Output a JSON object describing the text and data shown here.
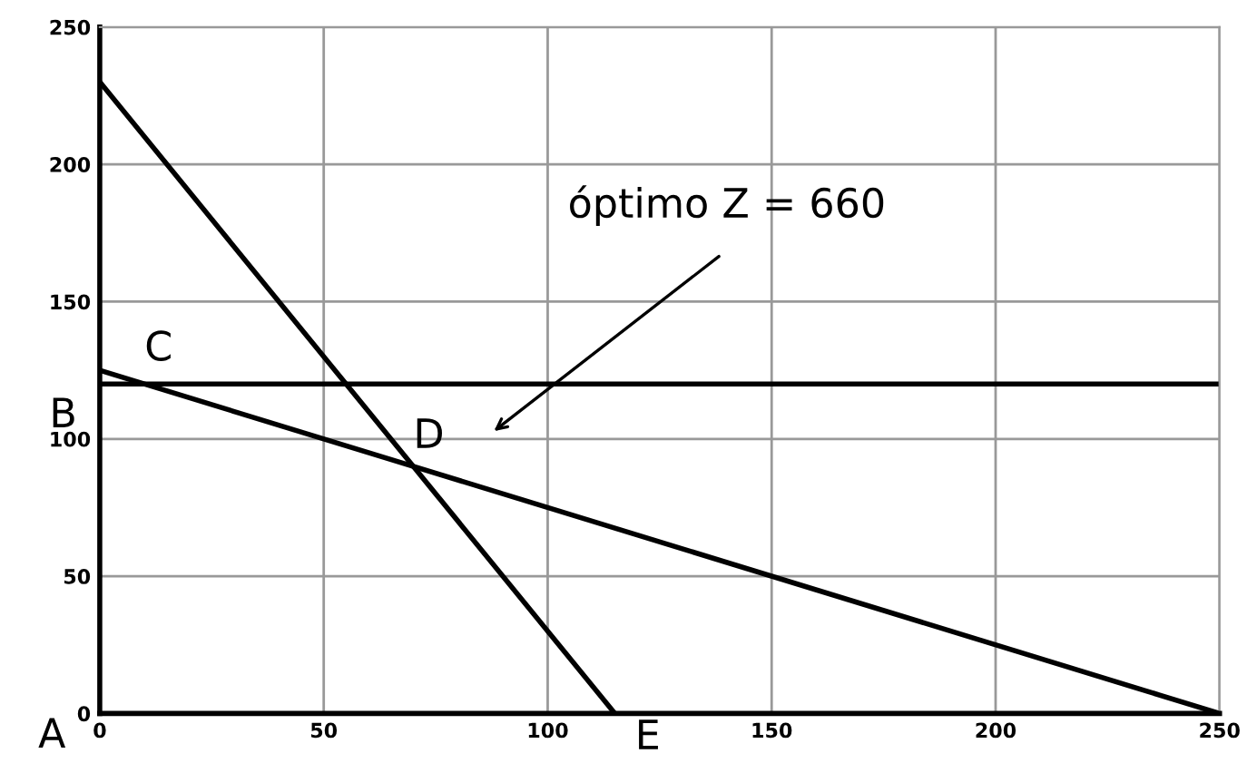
{
  "chart_data": {
    "type": "line",
    "series": [
      {
        "color": "#000000",
        "x": [
          0,
          115
        ],
        "values": [
          230,
          0
        ]
      },
      {
        "color": "#000000",
        "x": [
          0,
          250
        ],
        "values": [
          120,
          120
        ]
      },
      {
        "color": "#000000",
        "x": [
          0,
          250
        ],
        "values": [
          125,
          0
        ]
      }
    ],
    "xlim": [
      0,
      250
    ],
    "ylim": [
      0,
      250
    ],
    "xticks": [
      0,
      50,
      100,
      150,
      200,
      250
    ],
    "yticks": [
      0,
      50,
      100,
      150,
      200,
      250
    ],
    "grid": true,
    "marker": "none",
    "line_style": "solid",
    "annotations": [
      "A",
      {
        "text": "B",
        "x": 0,
        "y": 120
      },
      {
        "text": "C",
        "x": 10,
        "y": 120
      },
      {
        "text": "D",
        "x": 70,
        "y": 90
      },
      {
        "text": "E",
        "x": 115,
        "y": 0
      },
      "óptimo Z = 660"
    ]
  }
}
